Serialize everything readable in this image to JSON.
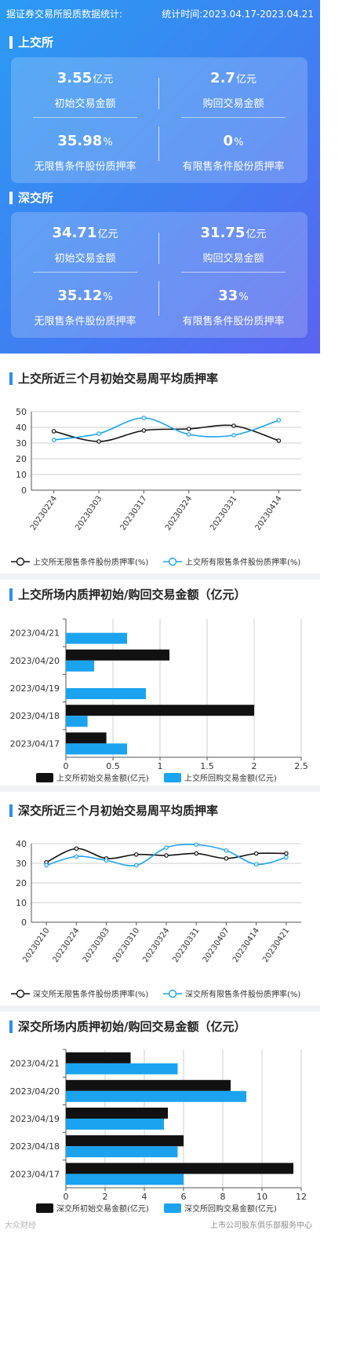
{
  "header": {
    "left": "据证券交易所股质数据统计:",
    "right": "统计时间:2023.04.17-2023.04.21"
  },
  "sse": {
    "name": "上交所",
    "initial_amount": {
      "value": "3.55",
      "unit": "亿元",
      "label": "初始交易金额"
    },
    "repurchase_amount": {
      "value": "2.7",
      "unit": "亿元",
      "label": "购回交易金额"
    },
    "unrestricted_ratio": {
      "value": "35.98",
      "unit": "%",
      "label": "无限售条件股份质押率"
    },
    "restricted_ratio": {
      "value": "0",
      "unit": "%",
      "label": "有限售条件股份质押率"
    }
  },
  "szse": {
    "name": "深交所",
    "initial_amount": {
      "value": "34.71",
      "unit": "亿元",
      "label": "初始交易金额"
    },
    "repurchase_amount": {
      "value": "31.75",
      "unit": "亿元",
      "label": "购回交易金额"
    },
    "unrestricted_ratio": {
      "value": "35.12",
      "unit": "%",
      "label": "无限售条件股份质押率"
    },
    "restricted_ratio": {
      "value": "33",
      "unit": "%",
      "label": "有限售条件股份质押率"
    }
  },
  "footer": {
    "left": "大众财经",
    "right": "上市公司股东俱乐部服务中心"
  },
  "colors": {
    "black_series": "#111111",
    "blue_series": "#1ba3f0",
    "accent": "#2a8ff0"
  },
  "chart_data": [
    {
      "type": "line",
      "title": "上交所近三个月初始交易周平均质押率",
      "categories": [
        "20230224",
        "20230303",
        "20230317",
        "20230324",
        "20230331",
        "20230414"
      ],
      "series": [
        {
          "name": "上交所无限售条件股份质押率(%)",
          "values": [
            37.5,
            31,
            38,
            39,
            41,
            31.5
          ]
        },
        {
          "name": "上交所有限售条件股份质押率(%)",
          "values": [
            32,
            36,
            46,
            35.5,
            35,
            44.5
          ]
        }
      ],
      "ylim": [
        0,
        50
      ],
      "yticks": [
        0,
        10,
        20,
        30,
        40,
        50
      ],
      "grid": true,
      "legend": "bottom"
    },
    {
      "type": "bar",
      "orientation": "horizontal",
      "title": "上交所场内质押初始/购回交易金额（亿元）",
      "categories": [
        "2023/04/21",
        "2023/04/20",
        "2023/04/19",
        "2023/04/18",
        "2023/04/17"
      ],
      "series": [
        {
          "name": "上交所初始交易金额(亿元)",
          "values": [
            0,
            1.1,
            0,
            2.0,
            0.43
          ]
        },
        {
          "name": "上交所回购交易金额(亿元)",
          "values": [
            0.65,
            0.3,
            0.85,
            0.23,
            0.65
          ]
        }
      ],
      "xlim": [
        0,
        2.5
      ],
      "xticks": [
        "0",
        "0.5",
        "1",
        "1.5",
        "2",
        "2.5"
      ],
      "grid": true,
      "legend": "bottom"
    },
    {
      "type": "line",
      "title": "深交所近三个月初始交易周平均质押率",
      "categories": [
        "20230210",
        "20230224",
        "20230303",
        "20230310",
        "20230324",
        "20230331",
        "20230407",
        "20230414",
        "20230421"
      ],
      "series": [
        {
          "name": "深交所无限售条件股份质押率(%)",
          "values": [
            30.5,
            37.5,
            32.5,
            34.5,
            34,
            35,
            32.5,
            35,
            35
          ]
        },
        {
          "name": "深交所有限售条件股份质押率(%)",
          "values": [
            29,
            33.5,
            31.5,
            29,
            38,
            39.5,
            36.5,
            29.5,
            33
          ]
        }
      ],
      "ylim": [
        0,
        40
      ],
      "yticks": [
        0,
        10,
        20,
        30,
        40
      ],
      "grid": true,
      "legend": "bottom"
    },
    {
      "type": "bar",
      "orientation": "horizontal",
      "title": "深交所场内质押初始/购回交易金额（亿元）",
      "categories": [
        "2023/04/21",
        "2023/04/20",
        "2023/04/19",
        "2023/04/18",
        "2023/04/17"
      ],
      "series": [
        {
          "name": "深交所初始交易金额(亿元)",
          "values": [
            3.3,
            8.4,
            5.2,
            6.0,
            11.6
          ]
        },
        {
          "name": "深交所回购交易金额(亿元)",
          "values": [
            5.7,
            9.2,
            5.0,
            5.7,
            6.0
          ]
        }
      ],
      "xlim": [
        0,
        12
      ],
      "xticks": [
        "0",
        "2",
        "4",
        "6",
        "8",
        "10",
        "12"
      ],
      "grid": true,
      "legend": "bottom"
    }
  ]
}
